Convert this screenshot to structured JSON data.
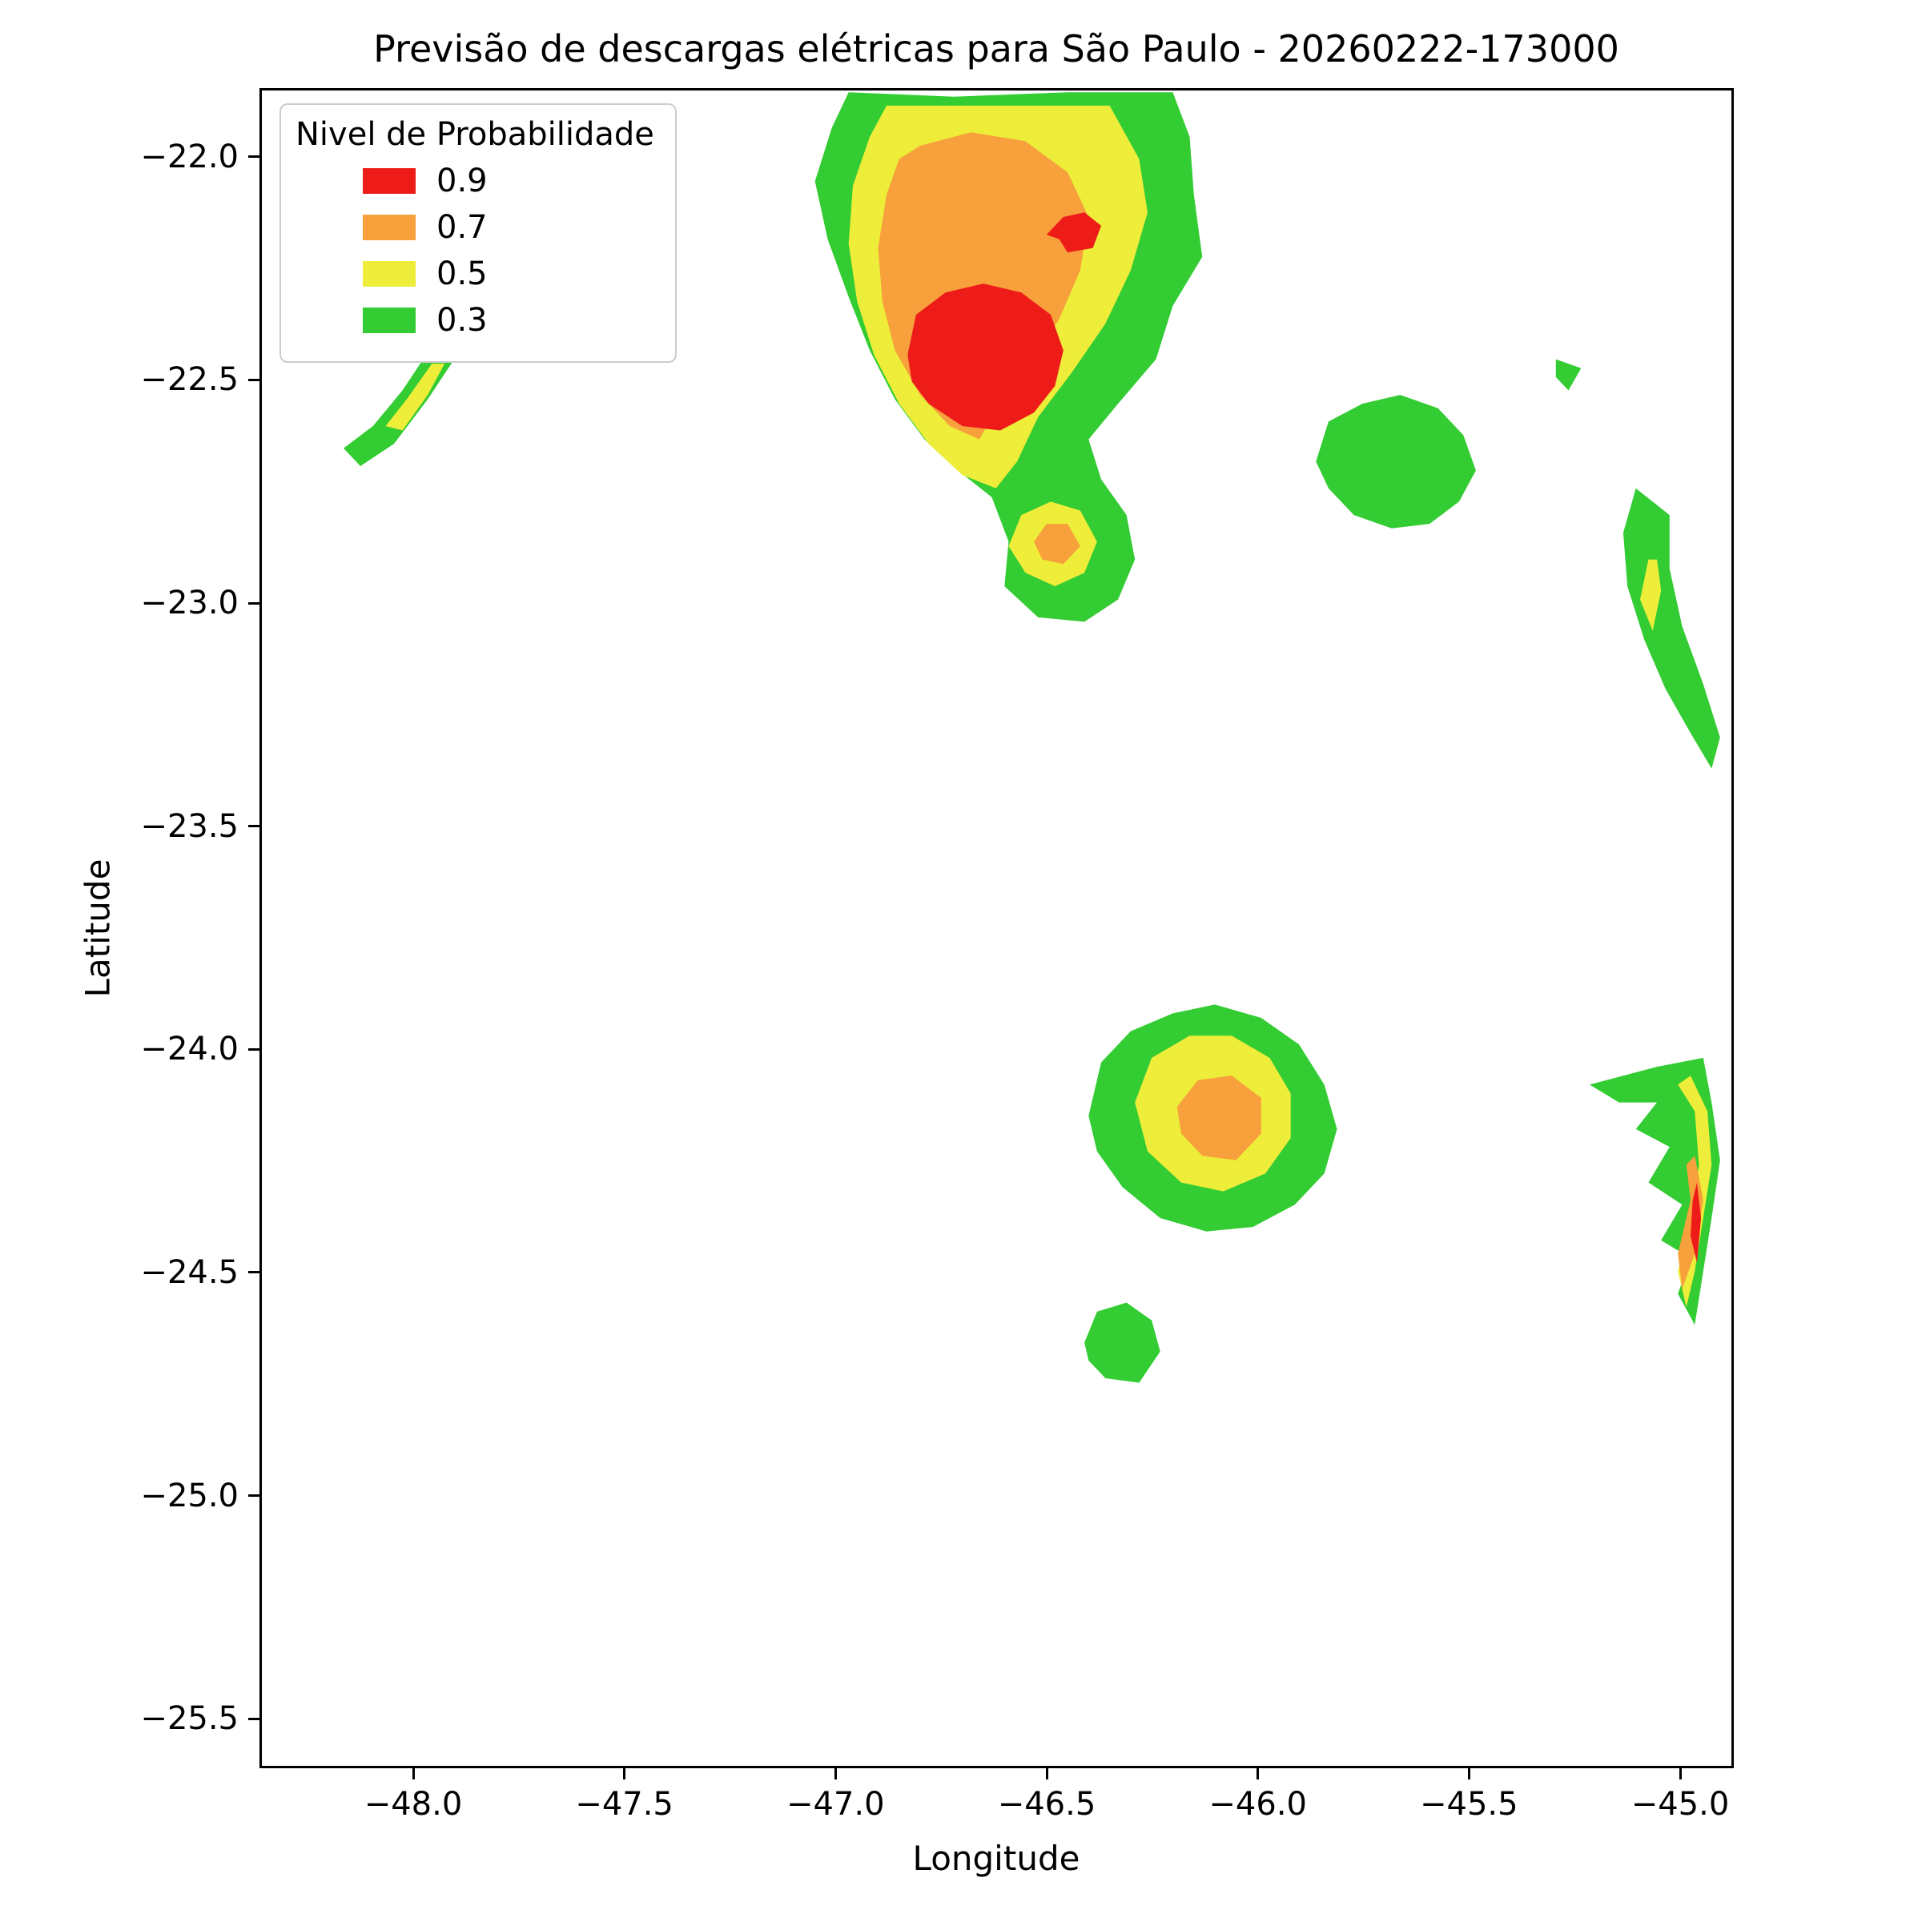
{
  "chart_data": {
    "type": "heatmap",
    "subtype": "filled-contour-map",
    "title": "Previsão de descargas elétricas para São Paulo - 20260222-173000",
    "xlabel": "Longitude",
    "ylabel": "Latitude",
    "xlim": [
      -48.364,
      -44.873
    ],
    "ylim": [
      -25.611,
      -21.846
    ],
    "grid": false,
    "legend": {
      "title": "Nivel de Probabilidade",
      "position": "upper left",
      "entries": [
        {
          "label": "0.9",
          "level": 0.9
        },
        {
          "label": "0.7",
          "level": 0.7
        },
        {
          "label": "0.5",
          "level": 0.5
        },
        {
          "label": "0.3",
          "level": 0.3
        }
      ]
    },
    "level_colors": {
      "0.3": "#33cc33",
      "0.5": "#eded3a",
      "0.7": "#f7a03c",
      "0.9": "#ee1c19"
    },
    "x_ticks": [
      {
        "value": -48.0,
        "label": "−48.0"
      },
      {
        "value": -47.5,
        "label": "−47.5"
      },
      {
        "value": -47.0,
        "label": "−47.0"
      },
      {
        "value": -46.5,
        "label": "−46.5"
      },
      {
        "value": -46.0,
        "label": "−46.0"
      },
      {
        "value": -45.5,
        "label": "−45.5"
      },
      {
        "value": -45.0,
        "label": "−45.0"
      }
    ],
    "y_ticks": [
      {
        "value": -22.0,
        "label": "−22.0"
      },
      {
        "value": -22.5,
        "label": "−22.5"
      },
      {
        "value": -23.0,
        "label": "−23.0"
      },
      {
        "value": -23.5,
        "label": "−23.5"
      },
      {
        "value": -24.0,
        "label": "−24.0"
      },
      {
        "value": -24.5,
        "label": "−24.5"
      },
      {
        "value": -25.0,
        "label": "−25.0"
      },
      {
        "value": -25.5,
        "label": "−25.5"
      }
    ],
    "regions": [
      {
        "name": "main-storm-green",
        "level": 0.3,
        "points": [
          [
            -46.97,
            -21.85
          ],
          [
            -46.72,
            -21.86
          ],
          [
            -46.45,
            -21.85
          ],
          [
            -46.2,
            -21.85
          ],
          [
            -46.16,
            -21.95
          ],
          [
            -46.15,
            -22.08
          ],
          [
            -46.13,
            -22.22
          ],
          [
            -46.2,
            -22.33
          ],
          [
            -46.24,
            -22.45
          ],
          [
            -46.33,
            -22.55
          ],
          [
            -46.4,
            -22.63
          ],
          [
            -46.37,
            -22.72
          ],
          [
            -46.31,
            -22.8
          ],
          [
            -46.29,
            -22.9
          ],
          [
            -46.33,
            -22.99
          ],
          [
            -46.41,
            -23.04
          ],
          [
            -46.52,
            -23.03
          ],
          [
            -46.6,
            -22.96
          ],
          [
            -46.59,
            -22.86
          ],
          [
            -46.63,
            -22.76
          ],
          [
            -46.71,
            -22.7
          ],
          [
            -46.79,
            -22.63
          ],
          [
            -46.86,
            -22.54
          ],
          [
            -46.92,
            -22.43
          ],
          [
            -46.97,
            -22.31
          ],
          [
            -47.02,
            -22.18
          ],
          [
            -47.05,
            -22.05
          ],
          [
            -47.01,
            -21.93
          ]
        ]
      },
      {
        "name": "northwest-streak-green",
        "level": 0.3,
        "points": [
          [
            -47.8,
            -22.28
          ],
          [
            -47.83,
            -22.26
          ],
          [
            -47.89,
            -22.32
          ],
          [
            -47.96,
            -22.42
          ],
          [
            -48.03,
            -22.52
          ],
          [
            -48.1,
            -22.6
          ],
          [
            -48.17,
            -22.65
          ],
          [
            -48.13,
            -22.69
          ],
          [
            -48.05,
            -22.64
          ],
          [
            -47.97,
            -22.54
          ],
          [
            -47.9,
            -22.44
          ],
          [
            -47.84,
            -22.34
          ]
        ]
      },
      {
        "name": "east-cell-green",
        "level": 0.3,
        "points": [
          [
            -45.86,
            -22.68
          ],
          [
            -45.83,
            -22.59
          ],
          [
            -45.75,
            -22.55
          ],
          [
            -45.66,
            -22.53
          ],
          [
            -45.57,
            -22.56
          ],
          [
            -45.51,
            -22.62
          ],
          [
            -45.48,
            -22.7
          ],
          [
            -45.52,
            -22.77
          ],
          [
            -45.59,
            -22.82
          ],
          [
            -45.68,
            -22.83
          ],
          [
            -45.77,
            -22.8
          ],
          [
            -45.83,
            -22.74
          ]
        ]
      },
      {
        "name": "east-edge-sliver-green",
        "level": 0.3,
        "points": [
          [
            -45.1,
            -22.74
          ],
          [
            -45.13,
            -22.84
          ],
          [
            -45.12,
            -22.96
          ],
          [
            -45.08,
            -23.08
          ],
          [
            -45.03,
            -23.19
          ],
          [
            -44.97,
            -23.29
          ],
          [
            -44.92,
            -23.37
          ],
          [
            -44.9,
            -23.3
          ],
          [
            -44.94,
            -23.18
          ],
          [
            -44.99,
            -23.05
          ],
          [
            -45.02,
            -22.92
          ],
          [
            -45.02,
            -22.8
          ]
        ]
      },
      {
        "name": "east-speck-green",
        "level": 0.3,
        "points": [
          [
            -45.29,
            -22.45
          ],
          [
            -45.23,
            -22.47
          ],
          [
            -45.26,
            -22.52
          ],
          [
            -45.29,
            -22.49
          ]
        ]
      },
      {
        "name": "south-cell-green",
        "level": 0.3,
        "points": [
          [
            -46.4,
            -24.15
          ],
          [
            -46.37,
            -24.03
          ],
          [
            -46.3,
            -23.96
          ],
          [
            -46.2,
            -23.92
          ],
          [
            -46.1,
            -23.9
          ],
          [
            -45.99,
            -23.93
          ],
          [
            -45.9,
            -23.99
          ],
          [
            -45.84,
            -24.08
          ],
          [
            -45.81,
            -24.18
          ],
          [
            -45.84,
            -24.28
          ],
          [
            -45.91,
            -24.35
          ],
          [
            -46.01,
            -24.4
          ],
          [
            -46.12,
            -24.41
          ],
          [
            -46.23,
            -24.38
          ],
          [
            -46.32,
            -24.31
          ],
          [
            -46.38,
            -24.23
          ]
        ]
      },
      {
        "name": "south-small-green",
        "level": 0.3,
        "points": [
          [
            -46.41,
            -24.66
          ],
          [
            -46.38,
            -24.59
          ],
          [
            -46.31,
            -24.57
          ],
          [
            -46.25,
            -24.61
          ],
          [
            -46.23,
            -24.68
          ],
          [
            -46.28,
            -24.75
          ],
          [
            -46.36,
            -24.74
          ],
          [
            -46.4,
            -24.7
          ]
        ]
      },
      {
        "name": "southeast-crescent-green",
        "level": 0.3,
        "points": [
          [
            -45.21,
            -24.08
          ],
          [
            -45.05,
            -24.04
          ],
          [
            -44.94,
            -24.02
          ],
          [
            -44.92,
            -24.12
          ],
          [
            -44.9,
            -24.25
          ],
          [
            -44.92,
            -24.38
          ],
          [
            -44.94,
            -24.5
          ],
          [
            -44.96,
            -24.62
          ],
          [
            -45.0,
            -24.55
          ],
          [
            -44.97,
            -24.47
          ],
          [
            -45.04,
            -24.43
          ],
          [
            -44.99,
            -24.35
          ],
          [
            -45.07,
            -24.3
          ],
          [
            -45.02,
            -24.22
          ],
          [
            -45.1,
            -24.18
          ],
          [
            -45.05,
            -24.12
          ],
          [
            -45.14,
            -24.12
          ]
        ]
      },
      {
        "name": "main-storm-yellow",
        "level": 0.5,
        "points": [
          [
            -46.88,
            -21.88
          ],
          [
            -46.6,
            -21.88
          ],
          [
            -46.35,
            -21.88
          ],
          [
            -46.28,
            -22.0
          ],
          [
            -46.26,
            -22.12
          ],
          [
            -46.3,
            -22.25
          ],
          [
            -46.36,
            -22.37
          ],
          [
            -46.44,
            -22.48
          ],
          [
            -46.52,
            -22.58
          ],
          [
            -46.57,
            -22.68
          ],
          [
            -46.62,
            -22.74
          ],
          [
            -46.7,
            -22.71
          ],
          [
            -46.78,
            -22.64
          ],
          [
            -46.85,
            -22.55
          ],
          [
            -46.91,
            -22.44
          ],
          [
            -46.95,
            -22.32
          ],
          [
            -46.97,
            -22.19
          ],
          [
            -46.96,
            -22.06
          ],
          [
            -46.92,
            -21.95
          ]
        ]
      },
      {
        "name": "main-lobe-yellow",
        "level": 0.5,
        "points": [
          [
            -46.59,
            -22.87
          ],
          [
            -46.56,
            -22.8
          ],
          [
            -46.49,
            -22.77
          ],
          [
            -46.42,
            -22.79
          ],
          [
            -46.38,
            -22.86
          ],
          [
            -46.41,
            -22.93
          ],
          [
            -46.48,
            -22.96
          ],
          [
            -46.55,
            -22.93
          ]
        ]
      },
      {
        "name": "northwest-streak-yellow",
        "level": 0.5,
        "points": [
          [
            -47.93,
            -22.46
          ],
          [
            -47.96,
            -22.46
          ],
          [
            -48.02,
            -22.54
          ],
          [
            -48.07,
            -22.6
          ],
          [
            -48.03,
            -22.61
          ],
          [
            -47.97,
            -22.53
          ]
        ]
      },
      {
        "name": "east-sliver-yellow",
        "level": 0.5,
        "points": [
          [
            -45.07,
            -22.9
          ],
          [
            -45.09,
            -22.99
          ],
          [
            -45.06,
            -23.06
          ],
          [
            -45.04,
            -22.97
          ],
          [
            -45.05,
            -22.9
          ]
        ]
      },
      {
        "name": "south-cell-yellow",
        "level": 0.5,
        "points": [
          [
            -46.29,
            -24.12
          ],
          [
            -46.25,
            -24.02
          ],
          [
            -46.16,
            -23.97
          ],
          [
            -46.06,
            -23.97
          ],
          [
            -45.97,
            -24.02
          ],
          [
            -45.92,
            -24.1
          ],
          [
            -45.92,
            -24.2
          ],
          [
            -45.98,
            -24.28
          ],
          [
            -46.08,
            -24.32
          ],
          [
            -46.18,
            -24.3
          ],
          [
            -46.26,
            -24.23
          ]
        ]
      },
      {
        "name": "southeast-crescent-yellow",
        "level": 0.5,
        "points": [
          [
            -44.97,
            -24.06
          ],
          [
            -44.93,
            -24.14
          ],
          [
            -44.92,
            -24.26
          ],
          [
            -44.94,
            -24.38
          ],
          [
            -44.96,
            -24.5
          ],
          [
            -44.98,
            -24.58
          ],
          [
            -45.0,
            -24.5
          ],
          [
            -44.97,
            -24.38
          ],
          [
            -44.95,
            -24.26
          ],
          [
            -44.96,
            -24.14
          ],
          [
            -45.0,
            -24.08
          ]
        ]
      },
      {
        "name": "main-storm-orange",
        "level": 0.7,
        "points": [
          [
            -46.8,
            -21.97
          ],
          [
            -46.68,
            -21.94
          ],
          [
            -46.55,
            -21.96
          ],
          [
            -46.45,
            -22.03
          ],
          [
            -46.4,
            -22.13
          ],
          [
            -46.42,
            -22.25
          ],
          [
            -46.47,
            -22.36
          ],
          [
            -46.54,
            -22.46
          ],
          [
            -46.61,
            -22.55
          ],
          [
            -46.66,
            -22.63
          ],
          [
            -46.73,
            -22.6
          ],
          [
            -46.8,
            -22.53
          ],
          [
            -46.86,
            -22.43
          ],
          [
            -46.89,
            -22.32
          ],
          [
            -46.9,
            -22.2
          ],
          [
            -46.88,
            -22.08
          ],
          [
            -46.85,
            -22.0
          ]
        ]
      },
      {
        "name": "main-lobe-orange",
        "level": 0.7,
        "points": [
          [
            -46.53,
            -22.86
          ],
          [
            -46.5,
            -22.82
          ],
          [
            -46.45,
            -22.82
          ],
          [
            -46.42,
            -22.87
          ],
          [
            -46.46,
            -22.91
          ],
          [
            -46.51,
            -22.9
          ]
        ]
      },
      {
        "name": "south-cell-orange",
        "level": 0.7,
        "points": [
          [
            -46.19,
            -24.13
          ],
          [
            -46.14,
            -24.07
          ],
          [
            -46.06,
            -24.06
          ],
          [
            -45.99,
            -24.11
          ],
          [
            -45.99,
            -24.19
          ],
          [
            -46.05,
            -24.25
          ],
          [
            -46.13,
            -24.24
          ],
          [
            -46.18,
            -24.19
          ]
        ]
      },
      {
        "name": "southeast-crescent-orange",
        "level": 0.7,
        "points": [
          [
            -44.96,
            -24.24
          ],
          [
            -44.94,
            -24.34
          ],
          [
            -44.96,
            -24.46
          ],
          [
            -44.99,
            -24.54
          ],
          [
            -45.0,
            -24.46
          ],
          [
            -44.97,
            -24.34
          ],
          [
            -44.98,
            -24.26
          ]
        ]
      },
      {
        "name": "main-core-red",
        "level": 0.9,
        "points": [
          [
            -46.83,
            -22.44
          ],
          [
            -46.81,
            -22.35
          ],
          [
            -46.74,
            -22.3
          ],
          [
            -46.65,
            -22.28
          ],
          [
            -46.56,
            -22.3
          ],
          [
            -46.49,
            -22.35
          ],
          [
            -46.46,
            -22.43
          ],
          [
            -46.48,
            -22.51
          ],
          [
            -46.53,
            -22.57
          ],
          [
            -46.61,
            -22.61
          ],
          [
            -46.7,
            -22.6
          ],
          [
            -46.78,
            -22.55
          ],
          [
            -46.82,
            -22.5
          ]
        ]
      },
      {
        "name": "small-spot-red",
        "level": 0.9,
        "points": [
          [
            -46.5,
            -22.17
          ],
          [
            -46.46,
            -22.13
          ],
          [
            -46.41,
            -22.12
          ],
          [
            -46.37,
            -22.15
          ],
          [
            -46.39,
            -22.2
          ],
          [
            -46.45,
            -22.21
          ],
          [
            -46.47,
            -22.18
          ]
        ]
      },
      {
        "name": "southeast-streak-red",
        "level": 0.9,
        "points": [
          [
            -44.955,
            -24.3
          ],
          [
            -44.945,
            -24.38
          ],
          [
            -44.955,
            -24.48
          ],
          [
            -44.97,
            -24.42
          ],
          [
            -44.965,
            -24.34
          ]
        ]
      }
    ]
  }
}
